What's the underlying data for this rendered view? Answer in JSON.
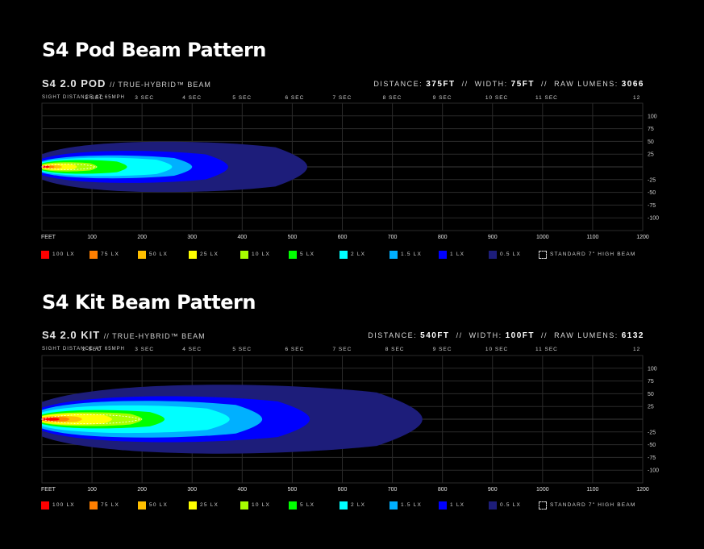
{
  "chart_data": [
    {
      "type": "heatmap",
      "title": "S4 Pod Beam Pattern",
      "product": "S4 2.0 Pod",
      "beam": "// True-Hybrid™ Beam",
      "specs": {
        "distance_label": "Distance:",
        "distance": "375ft",
        "width_label": "Width:",
        "width": "75ft",
        "lumens_label": "Raw Lumens:",
        "lumens": "3066",
        "sep": "//"
      },
      "sight_label": "Sight Distance at 65mph",
      "seconds": [
        {
          "label": "2 sec",
          "feet": 105
        },
        {
          "label": "3 sec",
          "feet": 205
        },
        {
          "label": "4 sec",
          "feet": 300
        },
        {
          "label": "5 sec",
          "feet": 400
        },
        {
          "label": "6 sec",
          "feet": 505
        },
        {
          "label": "7 sec",
          "feet": 600
        },
        {
          "label": "8 sec",
          "feet": 700
        },
        {
          "label": "9 sec",
          "feet": 800
        },
        {
          "label": "10 sec",
          "feet": 905
        },
        {
          "label": "11 sec",
          "feet": 1005
        },
        {
          "label": "12",
          "feet": 1200
        }
      ],
      "xlabel": "FEET",
      "xlim": [
        0,
        1200
      ],
      "x_ticks": [
        100,
        200,
        300,
        400,
        500,
        600,
        700,
        800,
        900,
        1000,
        1100,
        1200
      ],
      "ylim": [
        -125,
        125
      ],
      "y_ticks": [
        100,
        75,
        50,
        25,
        -25,
        -50,
        -75,
        -100
      ],
      "grid": true,
      "contours": [
        {
          "lux": "0.5 lx",
          "reach": 530,
          "half_width": 55
        },
        {
          "lux": "1 lx",
          "reach": 372,
          "half_width": 35
        },
        {
          "lux": "1.5 lx",
          "reach": 300,
          "half_width": 25
        },
        {
          "lux": "2 lx",
          "reach": 260,
          "half_width": 20
        },
        {
          "lux": "5 lx",
          "reach": 170,
          "half_width": 15
        },
        {
          "lux": "10 lx",
          "reach": 110,
          "half_width": 10
        },
        {
          "lux": "25 lx",
          "reach": 70,
          "half_width": 7
        },
        {
          "lux": "50 lx",
          "reach": 40,
          "half_width": 4
        },
        {
          "lux": "75 lx",
          "reach": 25,
          "half_width": 3
        },
        {
          "lux": "100 lx",
          "reach": 15,
          "half_width": 2
        }
      ]
    },
    {
      "type": "heatmap",
      "title": "S4 Kit Beam Pattern",
      "product": "S4 2.0 Kit",
      "beam": "// True-Hybrid™ Beam",
      "specs": {
        "distance_label": "Distance:",
        "distance": "540ft",
        "width_label": "Width:",
        "width": "100ft",
        "lumens_label": "Raw Lumens:",
        "lumens": "6132",
        "sep": "//"
      },
      "sight_label": "Sight Distance at 65mph",
      "seconds": [
        {
          "label": "2 sec",
          "feet": 100
        },
        {
          "label": "3 sec",
          "feet": 205
        },
        {
          "label": "4 sec",
          "feet": 300
        },
        {
          "label": "5 sec",
          "feet": 400
        },
        {
          "label": "6 sec",
          "feet": 505
        },
        {
          "label": "7 sec",
          "feet": 600
        },
        {
          "label": "8 sec",
          "feet": 705
        },
        {
          "label": "9 sec",
          "feet": 800
        },
        {
          "label": "10 sec",
          "feet": 905
        },
        {
          "label": "11 sec",
          "feet": 1005
        },
        {
          "label": "12",
          "feet": 1200
        }
      ],
      "xlabel": "FEET",
      "xlim": [
        0,
        1200
      ],
      "x_ticks": [
        100,
        200,
        300,
        400,
        500,
        600,
        700,
        800,
        900,
        1000,
        1100,
        1200
      ],
      "ylim": [
        -125,
        125
      ],
      "y_ticks": [
        100,
        75,
        50,
        25,
        -25,
        -50,
        -75,
        -100
      ],
      "grid": true,
      "contours": [
        {
          "lux": "0.5 lx",
          "reach": 760,
          "half_width": 75
        },
        {
          "lux": "1 lx",
          "reach": 535,
          "half_width": 50
        },
        {
          "lux": "1.5 lx",
          "reach": 440,
          "half_width": 40
        },
        {
          "lux": "2 lx",
          "reach": 375,
          "half_width": 30
        },
        {
          "lux": "5 lx",
          "reach": 245,
          "half_width": 20
        },
        {
          "lux": "10 lx",
          "reach": 200,
          "half_width": 15
        },
        {
          "lux": "25 lx",
          "reach": 140,
          "half_width": 12
        },
        {
          "lux": "50 lx",
          "reach": 80,
          "half_width": 7
        },
        {
          "lux": "75 lx",
          "reach": 55,
          "half_width": 5
        },
        {
          "lux": "100 lx",
          "reach": 35,
          "half_width": 3
        }
      ]
    }
  ],
  "legend": [
    {
      "label": "100 lx",
      "color": "#ff0000"
    },
    {
      "label": "75 lx",
      "color": "#ff7f00"
    },
    {
      "label": "50 lx",
      "color": "#ffbf00"
    },
    {
      "label": "25 lx",
      "color": "#ffff00"
    },
    {
      "label": "10 lx",
      "color": "#a8ff00"
    },
    {
      "label": "5 lx",
      "color": "#00ff00"
    },
    {
      "label": "2 lx",
      "color": "#00ffff"
    },
    {
      "label": "1.5 lx",
      "color": "#00b0ff"
    },
    {
      "label": "1 lx",
      "color": "#0000ff"
    },
    {
      "label": "0.5 lx",
      "color": "#1d1d7a"
    },
    {
      "label": "Standard 7\" High Beam",
      "style": "dashed"
    }
  ]
}
